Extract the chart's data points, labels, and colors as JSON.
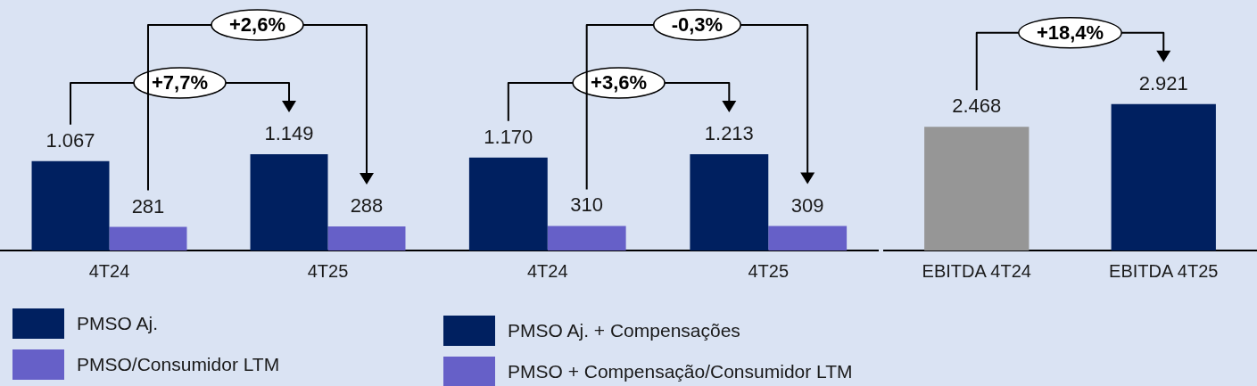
{
  "chart_data": [
    {
      "type": "bar",
      "categories": [
        "4T24",
        "4T25"
      ],
      "series": [
        {
          "name": "PMSO Aj.",
          "color": "#002060",
          "values": [
            1067,
            1149
          ],
          "value_labels": [
            "1.067",
            "1.149"
          ]
        },
        {
          "name": "PMSO/Consumidor LTM",
          "color": "#6660c8",
          "values": [
            281,
            288
          ],
          "value_labels": [
            "281",
            "288"
          ]
        }
      ],
      "annotations": [
        "+7,7%",
        "+2,6%"
      ],
      "legend": "bottom left"
    },
    {
      "type": "bar",
      "categories": [
        "4T24",
        "4T25"
      ],
      "series": [
        {
          "name": "PMSO Aj. + Compensações",
          "color": "#002060",
          "values": [
            1170,
            1213
          ],
          "value_labels": [
            "1.170",
            "1.213"
          ]
        },
        {
          "name": "PMSO + Compensação/Consumidor LTM",
          "color": "#6660c8",
          "values": [
            310,
            309
          ],
          "value_labels": [
            "310",
            "309"
          ]
        }
      ],
      "annotations": [
        "+3,6%",
        "-0,3%"
      ],
      "legend": "bottom left"
    },
    {
      "type": "bar",
      "categories": [
        "EBITDA 4T24",
        "EBITDA 4T25"
      ],
      "values": [
        2468,
        2921
      ],
      "colors": [
        "#969696",
        "#002060"
      ],
      "value_labels": [
        "2.468",
        "2.921"
      ],
      "annotations": [
        "+18,4%"
      ],
      "legend": false
    }
  ]
}
